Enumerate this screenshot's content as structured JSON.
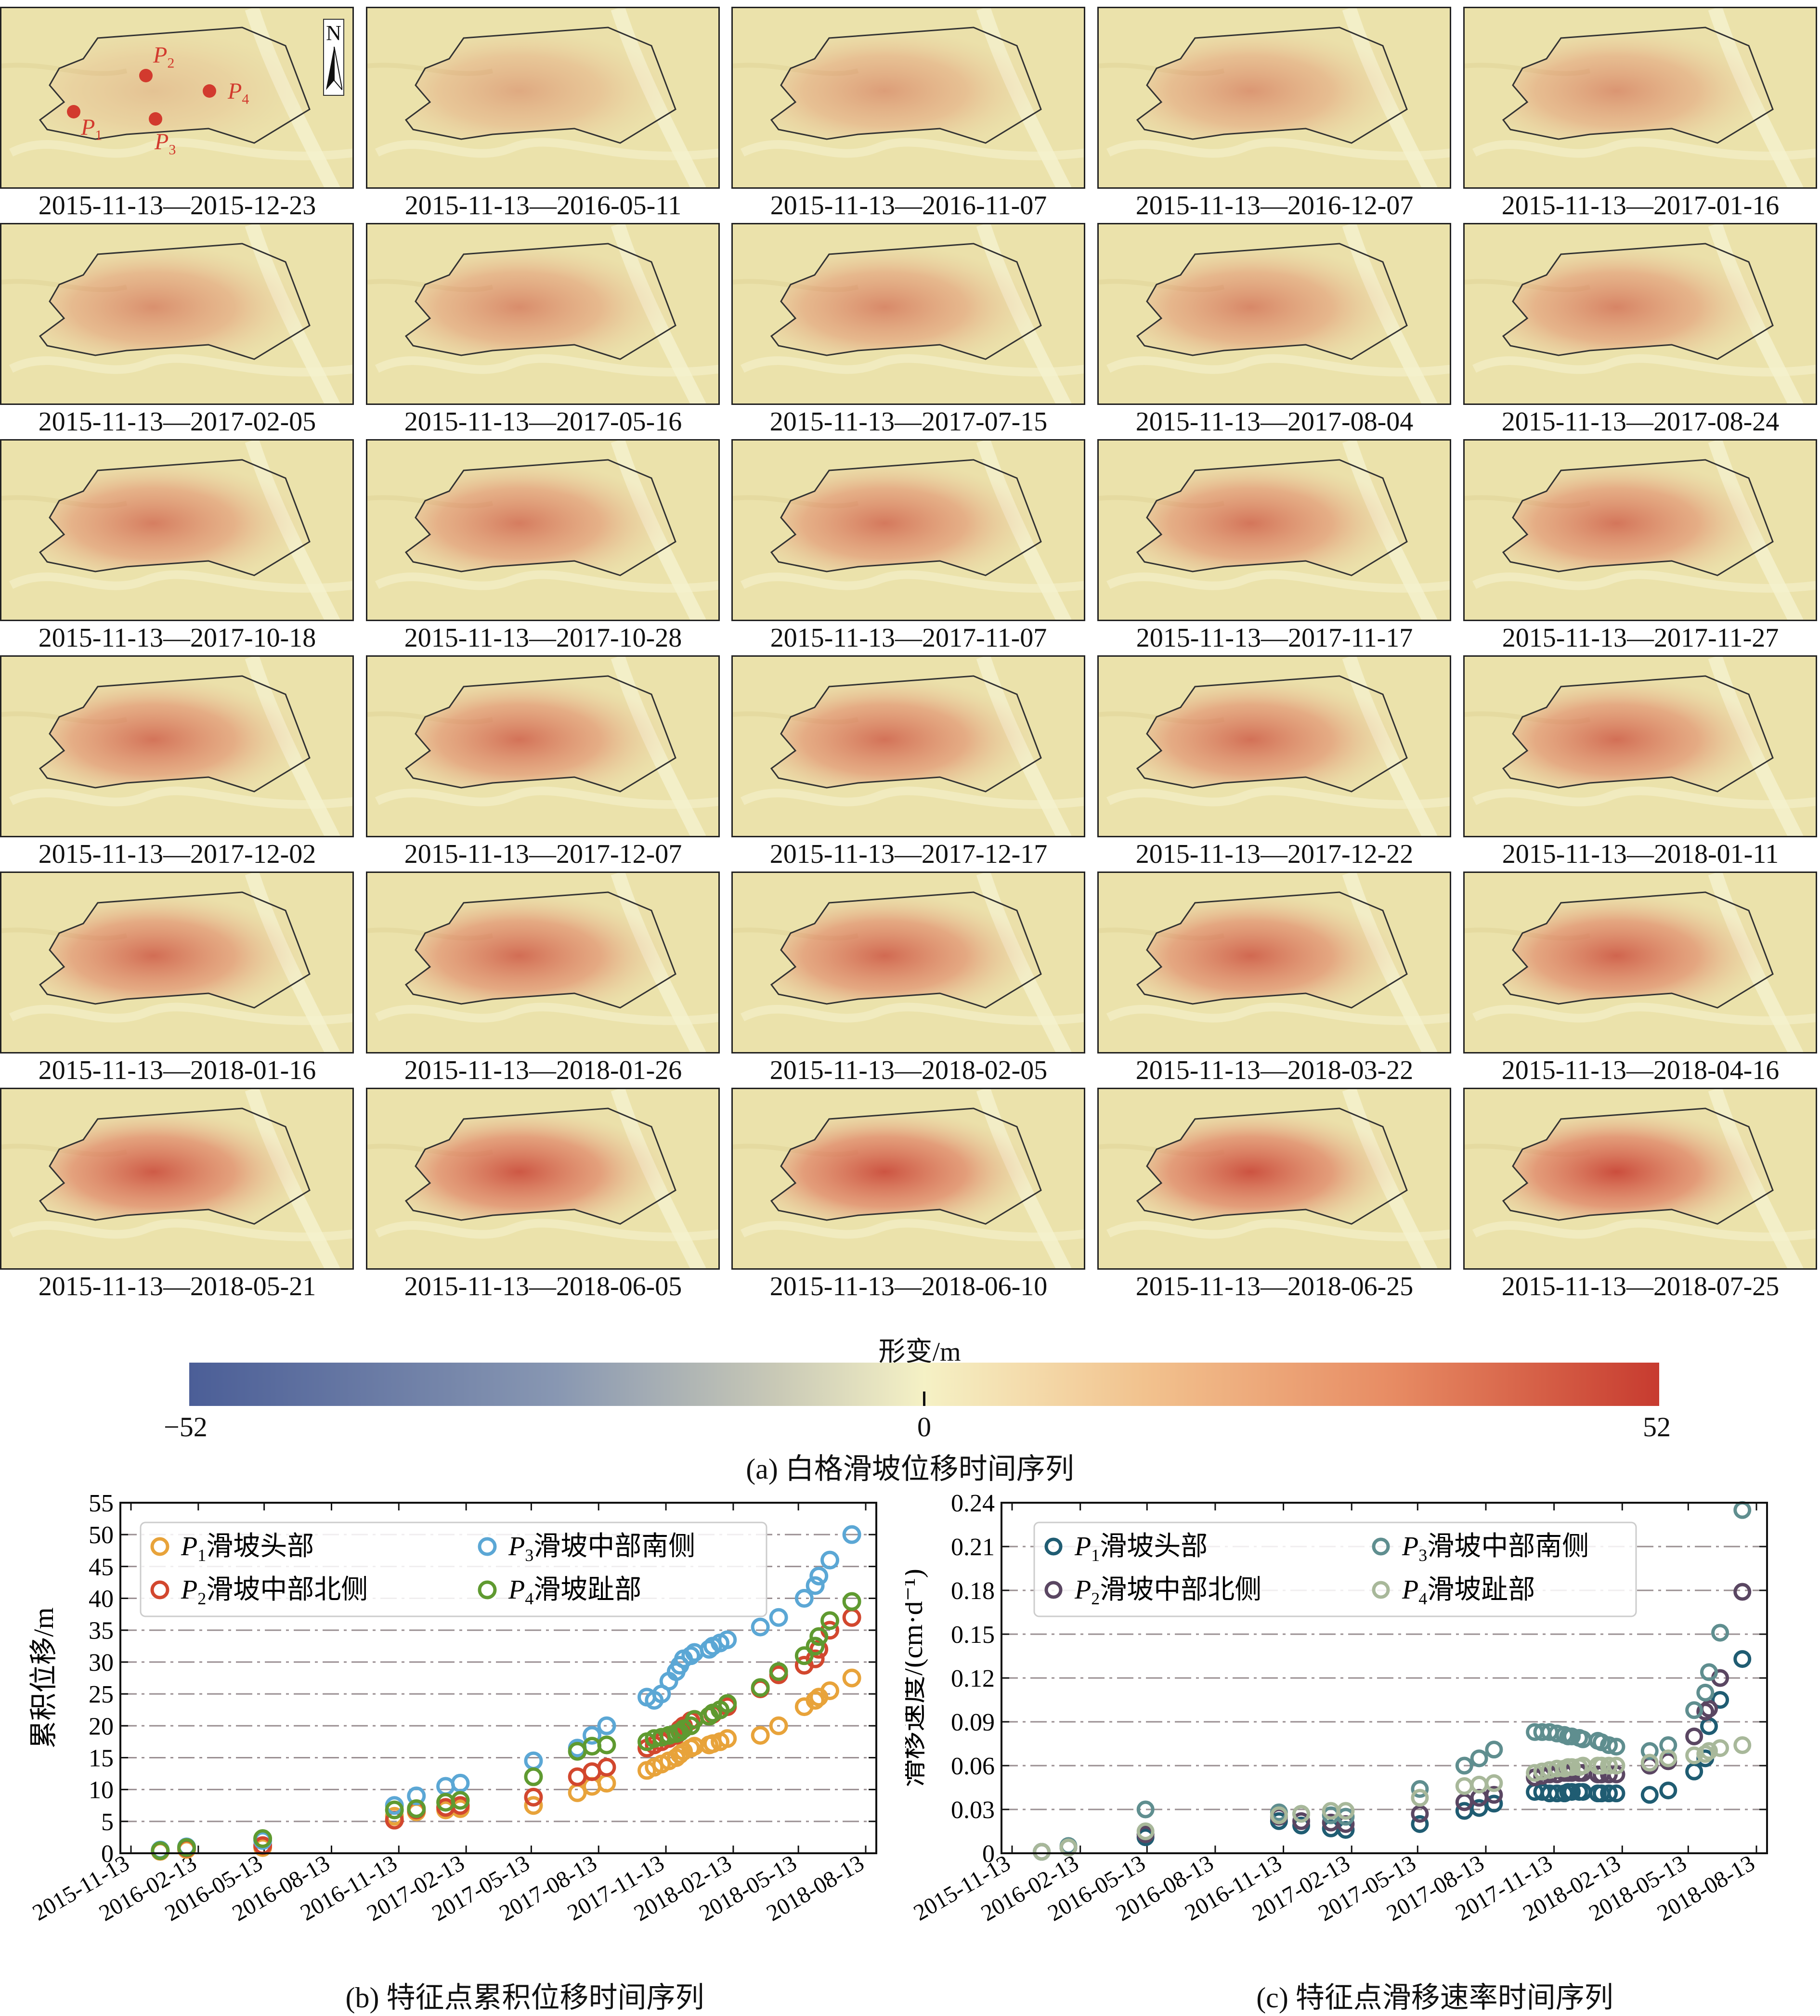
{
  "maps": {
    "labels": [
      "2015-11-13—2015-12-23",
      "2015-11-13—2016-05-11",
      "2015-11-13—2016-11-07",
      "2015-11-13—2016-12-07",
      "2015-11-13—2017-01-16",
      "2015-11-13—2017-02-05",
      "2015-11-13—2017-05-16",
      "2015-11-13—2017-07-15",
      "2015-11-13—2017-08-04",
      "2015-11-13—2017-08-24",
      "2015-11-13—2017-10-18",
      "2015-11-13—2017-10-28",
      "2015-11-13—2017-11-07",
      "2015-11-13—2017-11-17",
      "2015-11-13—2017-11-27",
      "2015-11-13—2017-12-02",
      "2015-11-13—2017-12-07",
      "2015-11-13—2017-12-17",
      "2015-11-13—2017-12-22",
      "2015-11-13—2018-01-11",
      "2015-11-13—2018-01-16",
      "2015-11-13—2018-01-26",
      "2015-11-13—2018-02-05",
      "2015-11-13—2018-03-22",
      "2015-11-13—2018-04-16",
      "2015-11-13—2018-05-21",
      "2015-11-13—2018-06-05",
      "2015-11-13—2018-06-10",
      "2015-11-13—2018-06-25",
      "2015-11-13—2018-07-25"
    ],
    "intensity": [
      0.05,
      0.25,
      0.35,
      0.4,
      0.42,
      0.45,
      0.48,
      0.5,
      0.52,
      0.55,
      0.6,
      0.62,
      0.64,
      0.66,
      0.67,
      0.68,
      0.69,
      0.7,
      0.71,
      0.72,
      0.73,
      0.74,
      0.76,
      0.78,
      0.8,
      0.88,
      0.9,
      0.93,
      0.95,
      0.98
    ],
    "north_label": "N",
    "point_labels": [
      {
        "id": "P1",
        "letter": "P",
        "sub": "1"
      },
      {
        "id": "P2",
        "letter": "P",
        "sub": "2"
      },
      {
        "id": "P3",
        "letter": "P",
        "sub": "3"
      },
      {
        "id": "P4",
        "letter": "P",
        "sub": "4"
      }
    ],
    "point_color": "#d23a2e"
  },
  "colorbar": {
    "title": "形变/m",
    "min_label": "−52",
    "mid_label": "0",
    "max_label": "52",
    "colors": [
      "#4b5e97",
      "#c9c9b6",
      "#f5f1c5",
      "#e78b63",
      "#c73b2f"
    ]
  },
  "captions": {
    "a": "(a) 白格滑坡位移时间序列",
    "b": "(b) 特征点累积位移时间序列",
    "c": "(c) 特征点滑移速率时间序列"
  },
  "chart_data": [
    {
      "type": "scatter",
      "ylabel": "累积位移/m",
      "xlabel": "",
      "ylim": [
        0,
        55
      ],
      "yticks": [
        0,
        5,
        10,
        15,
        20,
        25,
        30,
        35,
        40,
        45,
        50,
        55
      ],
      "xlim": [
        "2015-11-13",
        "2018-08-13"
      ],
      "xticks": [
        "2015-11-13",
        "2016-02-13",
        "2016-05-13",
        "2016-08-13",
        "2016-11-13",
        "2017-02-13",
        "2017-05-13",
        "2017-08-13",
        "2017-11-13",
        "2018-02-13",
        "2018-05-13",
        "2018-08-13"
      ],
      "grid": "horizontal dash-dot",
      "legend_position": "top-left",
      "x": [
        "2015-12-23",
        "2016-01-28",
        "2016-05-11",
        "2016-11-07",
        "2016-12-07",
        "2017-01-16",
        "2017-02-05",
        "2017-05-16",
        "2017-07-15",
        "2017-08-04",
        "2017-08-24",
        "2017-10-18",
        "2017-10-28",
        "2017-11-07",
        "2017-11-17",
        "2017-11-27",
        "2017-12-02",
        "2017-12-07",
        "2017-12-17",
        "2017-12-22",
        "2018-01-11",
        "2018-01-16",
        "2018-01-26",
        "2018-02-05",
        "2018-03-22",
        "2018-04-16",
        "2018-05-21",
        "2018-06-05",
        "2018-06-10",
        "2018-06-25",
        "2018-07-25"
      ],
      "series": [
        {
          "name": "P1滑坡头部",
          "color": "#e8a33a",
          "values": [
            0.3,
            0.6,
            0.9,
            5.8,
            6.5,
            6.8,
            7.0,
            7.5,
            9.5,
            10.5,
            11.0,
            13.0,
            13.5,
            14.0,
            14.5,
            15.0,
            15.5,
            16.0,
            16.5,
            16.8,
            17.0,
            17.2,
            17.5,
            18.0,
            18.5,
            20.0,
            23.0,
            24.0,
            24.5,
            25.5,
            27.5
          ]
        },
        {
          "name": "P2滑坡中部北侧",
          "color": "#d2472e",
          "values": [
            0.4,
            0.8,
            1.2,
            5.2,
            6.8,
            7.2,
            7.5,
            8.8,
            12.0,
            12.8,
            13.5,
            16.5,
            17.0,
            17.5,
            18.0,
            18.5,
            19.5,
            20.0,
            20.8,
            21.0,
            21.5,
            21.8,
            22.5,
            23.0,
            25.8,
            28.0,
            29.5,
            30.5,
            32.0,
            35.0,
            37.0
          ]
        },
        {
          "name": "P3滑坡中部南侧",
          "color": "#5ba7d5",
          "values": [
            0.5,
            1.0,
            2.0,
            7.5,
            9.0,
            10.5,
            11.0,
            14.5,
            16.5,
            18.5,
            20.0,
            24.5,
            24.0,
            25.0,
            27.0,
            28.5,
            29.5,
            30.5,
            31.0,
            31.5,
            32.0,
            32.5,
            33.0,
            33.5,
            35.5,
            37.0,
            40.0,
            42.0,
            43.5,
            46.0,
            50.0
          ]
        },
        {
          "name": "P4滑坡趾部",
          "color": "#5f9a30",
          "values": [
            0.4,
            0.9,
            2.3,
            6.8,
            7.0,
            8.0,
            8.3,
            12.0,
            16.0,
            16.8,
            17.0,
            17.5,
            18.0,
            18.2,
            18.5,
            18.8,
            19.0,
            19.5,
            20.0,
            21.0,
            21.5,
            22.0,
            22.5,
            23.5,
            26.0,
            28.5,
            31.0,
            32.5,
            34.0,
            36.5,
            39.5
          ]
        }
      ],
      "legend_rows": [
        {
          "letter": "P",
          "sub": "1",
          "text": "滑坡头部"
        },
        {
          "letter": "P",
          "sub": "2",
          "text": "滑坡中部北侧"
        },
        {
          "letter": "P",
          "sub": "3",
          "text": "滑坡中部南侧"
        },
        {
          "letter": "P",
          "sub": "4",
          "text": "滑坡趾部"
        }
      ]
    },
    {
      "type": "scatter",
      "ylabel": "滑移速度/(cm·d⁻¹)",
      "xlabel": "",
      "ylim": [
        0,
        0.24
      ],
      "yticks": [
        "0",
        "0.03",
        "0.06",
        "0.09",
        "0.12",
        "0.15",
        "0.18",
        "0.21",
        "0.24"
      ],
      "xlim": [
        "2015-11-13",
        "2018-08-13"
      ],
      "xticks": [
        "2015-11-13",
        "2016-02-13",
        "2016-05-13",
        "2016-08-13",
        "2016-11-13",
        "2017-02-13",
        "2017-05-13",
        "2017-08-13",
        "2017-11-13",
        "2018-02-13",
        "2018-05-13",
        "2018-08-13"
      ],
      "grid": "horizontal dash-dot",
      "legend_position": "top-left",
      "x": [
        "2015-12-23",
        "2016-01-28",
        "2016-05-11",
        "2016-11-07",
        "2016-12-07",
        "2017-01-16",
        "2017-02-05",
        "2017-05-16",
        "2017-07-15",
        "2017-08-04",
        "2017-08-24",
        "2017-10-18",
        "2017-10-28",
        "2017-11-07",
        "2017-11-17",
        "2017-11-27",
        "2017-12-02",
        "2017-12-07",
        "2017-12-17",
        "2017-12-22",
        "2018-01-11",
        "2018-01-16",
        "2018-01-26",
        "2018-02-05",
        "2018-03-22",
        "2018-04-16",
        "2018-05-21",
        "2018-06-05",
        "2018-06-10",
        "2018-06-25",
        "2018-07-25"
      ],
      "series": [
        {
          "name": "P1滑坡头部",
          "color": "#1f5c72",
          "values": [
            0.001,
            0.004,
            0.011,
            0.022,
            0.019,
            0.017,
            0.016,
            0.02,
            0.029,
            0.031,
            0.034,
            0.042,
            0.042,
            0.041,
            0.041,
            0.041,
            0.042,
            0.042,
            0.042,
            0.042,
            0.041,
            0.041,
            0.041,
            0.041,
            0.04,
            0.043,
            0.056,
            0.065,
            0.087,
            0.105,
            0.133
          ]
        },
        {
          "name": "P2滑坡中部北侧",
          "color": "#5a4662",
          "values": [
            0.001,
            0.004,
            0.013,
            0.025,
            0.022,
            0.021,
            0.02,
            0.027,
            0.035,
            0.038,
            0.04,
            0.052,
            0.053,
            0.054,
            0.054,
            0.055,
            0.055,
            0.055,
            0.055,
            0.055,
            0.054,
            0.054,
            0.054,
            0.054,
            0.06,
            0.063,
            0.08,
            0.097,
            0.099,
            0.12,
            0.179
          ]
        },
        {
          "name": "P3滑坡中部南侧",
          "color": "#5f8e8f",
          "values": [
            0.001,
            0.005,
            0.03,
            0.028,
            0.027,
            0.026,
            0.025,
            0.044,
            0.06,
            0.065,
            0.071,
            0.083,
            0.083,
            0.083,
            0.082,
            0.081,
            0.08,
            0.08,
            0.079,
            0.078,
            0.077,
            0.076,
            0.074,
            0.073,
            0.07,
            0.074,
            0.098,
            0.11,
            0.124,
            0.151,
            0.235
          ]
        },
        {
          "name": "P4滑坡趾部",
          "color": "#a8b89a",
          "values": [
            0.001,
            0.004,
            0.015,
            0.026,
            0.027,
            0.029,
            0.029,
            0.038,
            0.046,
            0.047,
            0.048,
            0.055,
            0.056,
            0.057,
            0.058,
            0.058,
            0.059,
            0.059,
            0.059,
            0.06,
            0.06,
            0.06,
            0.06,
            0.06,
            0.062,
            0.065,
            0.067,
            0.068,
            0.07,
            0.072,
            0.074
          ]
        }
      ],
      "legend_rows": [
        {
          "letter": "P",
          "sub": "1",
          "text": "滑坡头部"
        },
        {
          "letter": "P",
          "sub": "2",
          "text": "滑坡中部北侧"
        },
        {
          "letter": "P",
          "sub": "3",
          "text": "滑坡中部南侧"
        },
        {
          "letter": "P",
          "sub": "4",
          "text": "滑坡趾部"
        }
      ]
    }
  ]
}
